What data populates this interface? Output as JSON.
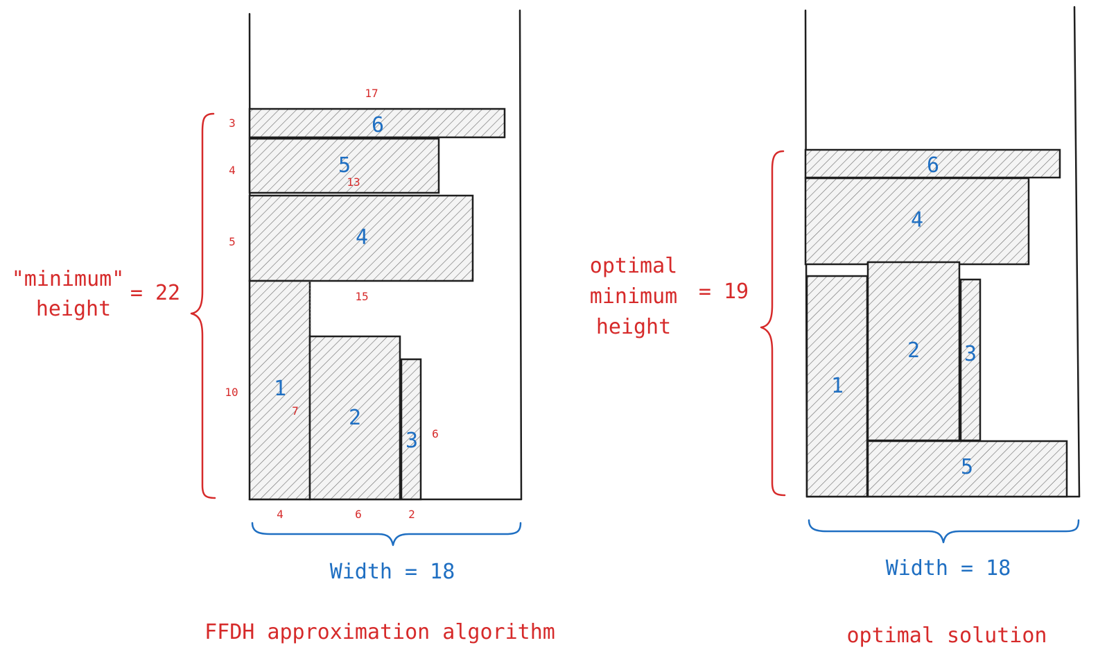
{
  "left": {
    "rect_labels": {
      "r6": "6",
      "r5": "5",
      "r4": "4",
      "r1": "1",
      "r2": "2",
      "r3": "3"
    },
    "dims": {
      "d17": "17",
      "d13": "13",
      "d15": "15",
      "h3": "3",
      "h4": "4",
      "h5": "5",
      "h10": "10",
      "h7": "7",
      "h6": "6",
      "w4": "4",
      "w6": "6",
      "w2": "2"
    },
    "height_label_line1": "\"minimum\"",
    "height_label_line2": "height",
    "height_value": "= 22",
    "width_label": "Width = 18",
    "caption": "FFDH approximation algorithm"
  },
  "right": {
    "rect_labels": {
      "r6": "6",
      "r4": "4",
      "r1": "1",
      "r2": "2",
      "r3": "3",
      "r5": "5"
    },
    "height_label_line1": "optimal",
    "height_label_line2": "minimum",
    "height_label_line3": "height",
    "height_value": "= 19",
    "width_label": "Width = 18",
    "caption": "optimal solution"
  },
  "colors": {
    "annotation": "#d62a2a",
    "label": "#1f6fc2",
    "outline": "#1e1e1e"
  }
}
